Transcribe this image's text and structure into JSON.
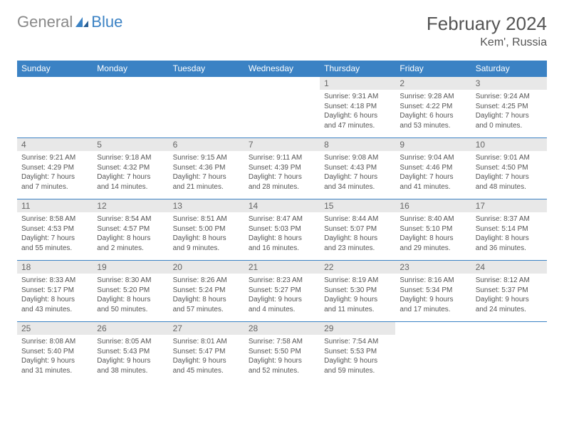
{
  "brand": {
    "part1": "General",
    "part2": "Blue"
  },
  "title": "February 2024",
  "location": "Kem', Russia",
  "colors": {
    "header_bg": "#3b82c4",
    "header_text": "#ffffff",
    "daynum_bg": "#e8e8e8",
    "daynum_text": "#666666",
    "body_text": "#555555",
    "border": "#3b82c4"
  },
  "weekdays": [
    "Sunday",
    "Monday",
    "Tuesday",
    "Wednesday",
    "Thursday",
    "Friday",
    "Saturday"
  ],
  "weeks": [
    [
      null,
      null,
      null,
      null,
      {
        "n": "1",
        "sr": "Sunrise: 9:31 AM",
        "ss": "Sunset: 4:18 PM",
        "d1": "Daylight: 6 hours",
        "d2": "and 47 minutes."
      },
      {
        "n": "2",
        "sr": "Sunrise: 9:28 AM",
        "ss": "Sunset: 4:22 PM",
        "d1": "Daylight: 6 hours",
        "d2": "and 53 minutes."
      },
      {
        "n": "3",
        "sr": "Sunrise: 9:24 AM",
        "ss": "Sunset: 4:25 PM",
        "d1": "Daylight: 7 hours",
        "d2": "and 0 minutes."
      }
    ],
    [
      {
        "n": "4",
        "sr": "Sunrise: 9:21 AM",
        "ss": "Sunset: 4:29 PM",
        "d1": "Daylight: 7 hours",
        "d2": "and 7 minutes."
      },
      {
        "n": "5",
        "sr": "Sunrise: 9:18 AM",
        "ss": "Sunset: 4:32 PM",
        "d1": "Daylight: 7 hours",
        "d2": "and 14 minutes."
      },
      {
        "n": "6",
        "sr": "Sunrise: 9:15 AM",
        "ss": "Sunset: 4:36 PM",
        "d1": "Daylight: 7 hours",
        "d2": "and 21 minutes."
      },
      {
        "n": "7",
        "sr": "Sunrise: 9:11 AM",
        "ss": "Sunset: 4:39 PM",
        "d1": "Daylight: 7 hours",
        "d2": "and 28 minutes."
      },
      {
        "n": "8",
        "sr": "Sunrise: 9:08 AM",
        "ss": "Sunset: 4:43 PM",
        "d1": "Daylight: 7 hours",
        "d2": "and 34 minutes."
      },
      {
        "n": "9",
        "sr": "Sunrise: 9:04 AM",
        "ss": "Sunset: 4:46 PM",
        "d1": "Daylight: 7 hours",
        "d2": "and 41 minutes."
      },
      {
        "n": "10",
        "sr": "Sunrise: 9:01 AM",
        "ss": "Sunset: 4:50 PM",
        "d1": "Daylight: 7 hours",
        "d2": "and 48 minutes."
      }
    ],
    [
      {
        "n": "11",
        "sr": "Sunrise: 8:58 AM",
        "ss": "Sunset: 4:53 PM",
        "d1": "Daylight: 7 hours",
        "d2": "and 55 minutes."
      },
      {
        "n": "12",
        "sr": "Sunrise: 8:54 AM",
        "ss": "Sunset: 4:57 PM",
        "d1": "Daylight: 8 hours",
        "d2": "and 2 minutes."
      },
      {
        "n": "13",
        "sr": "Sunrise: 8:51 AM",
        "ss": "Sunset: 5:00 PM",
        "d1": "Daylight: 8 hours",
        "d2": "and 9 minutes."
      },
      {
        "n": "14",
        "sr": "Sunrise: 8:47 AM",
        "ss": "Sunset: 5:03 PM",
        "d1": "Daylight: 8 hours",
        "d2": "and 16 minutes."
      },
      {
        "n": "15",
        "sr": "Sunrise: 8:44 AM",
        "ss": "Sunset: 5:07 PM",
        "d1": "Daylight: 8 hours",
        "d2": "and 23 minutes."
      },
      {
        "n": "16",
        "sr": "Sunrise: 8:40 AM",
        "ss": "Sunset: 5:10 PM",
        "d1": "Daylight: 8 hours",
        "d2": "and 29 minutes."
      },
      {
        "n": "17",
        "sr": "Sunrise: 8:37 AM",
        "ss": "Sunset: 5:14 PM",
        "d1": "Daylight: 8 hours",
        "d2": "and 36 minutes."
      }
    ],
    [
      {
        "n": "18",
        "sr": "Sunrise: 8:33 AM",
        "ss": "Sunset: 5:17 PM",
        "d1": "Daylight: 8 hours",
        "d2": "and 43 minutes."
      },
      {
        "n": "19",
        "sr": "Sunrise: 8:30 AM",
        "ss": "Sunset: 5:20 PM",
        "d1": "Daylight: 8 hours",
        "d2": "and 50 minutes."
      },
      {
        "n": "20",
        "sr": "Sunrise: 8:26 AM",
        "ss": "Sunset: 5:24 PM",
        "d1": "Daylight: 8 hours",
        "d2": "and 57 minutes."
      },
      {
        "n": "21",
        "sr": "Sunrise: 8:23 AM",
        "ss": "Sunset: 5:27 PM",
        "d1": "Daylight: 9 hours",
        "d2": "and 4 minutes."
      },
      {
        "n": "22",
        "sr": "Sunrise: 8:19 AM",
        "ss": "Sunset: 5:30 PM",
        "d1": "Daylight: 9 hours",
        "d2": "and 11 minutes."
      },
      {
        "n": "23",
        "sr": "Sunrise: 8:16 AM",
        "ss": "Sunset: 5:34 PM",
        "d1": "Daylight: 9 hours",
        "d2": "and 17 minutes."
      },
      {
        "n": "24",
        "sr": "Sunrise: 8:12 AM",
        "ss": "Sunset: 5:37 PM",
        "d1": "Daylight: 9 hours",
        "d2": "and 24 minutes."
      }
    ],
    [
      {
        "n": "25",
        "sr": "Sunrise: 8:08 AM",
        "ss": "Sunset: 5:40 PM",
        "d1": "Daylight: 9 hours",
        "d2": "and 31 minutes."
      },
      {
        "n": "26",
        "sr": "Sunrise: 8:05 AM",
        "ss": "Sunset: 5:43 PM",
        "d1": "Daylight: 9 hours",
        "d2": "and 38 minutes."
      },
      {
        "n": "27",
        "sr": "Sunrise: 8:01 AM",
        "ss": "Sunset: 5:47 PM",
        "d1": "Daylight: 9 hours",
        "d2": "and 45 minutes."
      },
      {
        "n": "28",
        "sr": "Sunrise: 7:58 AM",
        "ss": "Sunset: 5:50 PM",
        "d1": "Daylight: 9 hours",
        "d2": "and 52 minutes."
      },
      {
        "n": "29",
        "sr": "Sunrise: 7:54 AM",
        "ss": "Sunset: 5:53 PM",
        "d1": "Daylight: 9 hours",
        "d2": "and 59 minutes."
      },
      null,
      null
    ]
  ]
}
